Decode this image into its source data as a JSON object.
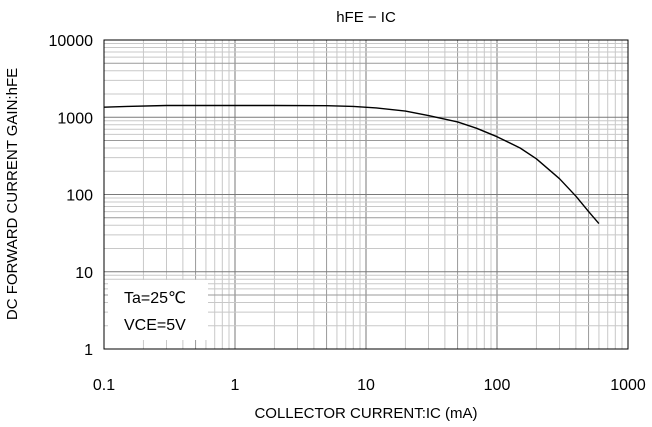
{
  "chart_data": {
    "type": "line",
    "title": "hFE − IC",
    "xlabel": "COLLECTOR CURRENT:IC (mA)",
    "ylabel": "DC FORWARD CURRENT GAIN:hFE",
    "x_scale": "log",
    "y_scale": "log",
    "xlim": [
      0.1,
      1000
    ],
    "ylim": [
      1,
      10000
    ],
    "grid": true,
    "x_ticks": [
      {
        "value": 0.1,
        "label": "0.1"
      },
      {
        "value": 1,
        "label": "1"
      },
      {
        "value": 10,
        "label": "10"
      },
      {
        "value": 100,
        "label": "100"
      },
      {
        "value": 1000,
        "label": "1000"
      }
    ],
    "y_ticks": [
      {
        "value": 1,
        "label": "1"
      },
      {
        "value": 10,
        "label": "10"
      },
      {
        "value": 100,
        "label": "100"
      },
      {
        "value": 1000,
        "label": "1000"
      },
      {
        "value": 10000,
        "label": "10000"
      }
    ],
    "annotations": [
      "Ta=25℃",
      "VCE=5V"
    ],
    "series": [
      {
        "name": "",
        "color": "#000000",
        "x": [
          0.1,
          0.15,
          0.3,
          1,
          2,
          5,
          8,
          12,
          20,
          30,
          50,
          70,
          100,
          150,
          200,
          300,
          400,
          500,
          600
        ],
        "y": [
          1350,
          1380,
          1420,
          1420,
          1420,
          1410,
          1380,
          1320,
          1200,
          1050,
          870,
          720,
          560,
          400,
          290,
          160,
          95,
          60,
          42
        ]
      }
    ]
  }
}
